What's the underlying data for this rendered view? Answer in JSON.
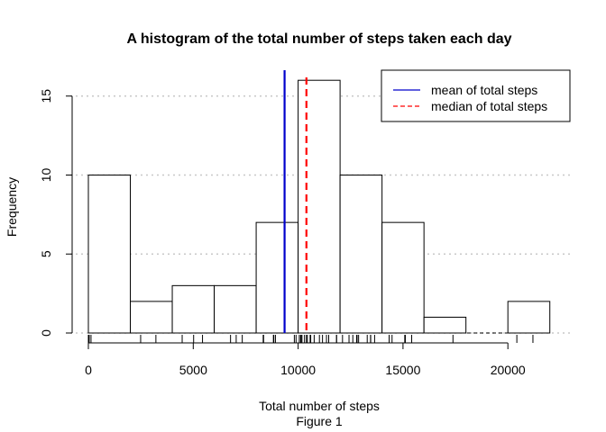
{
  "chart_data": {
    "type": "bar",
    "title": "A histogram of the total number of steps taken each day",
    "xlabel": "Total number of steps",
    "ylabel": "Frequency",
    "caption": "Figure 1",
    "xlim": [
      0,
      22000
    ],
    "ylim": [
      0,
      16
    ],
    "x_ticks": [
      0,
      5000,
      10000,
      15000,
      20000
    ],
    "x_tick_labels": [
      "0",
      "5000",
      "10000",
      "15000",
      "20000"
    ],
    "y_ticks": [
      0,
      5,
      10,
      15
    ],
    "y_tick_labels": [
      "0",
      "5",
      "10",
      "15"
    ],
    "grid": "horizontal dotted at y ticks",
    "bins": [
      {
        "from": 0,
        "to": 2000,
        "count": 10
      },
      {
        "from": 2000,
        "to": 4000,
        "count": 2
      },
      {
        "from": 4000,
        "to": 6000,
        "count": 3
      },
      {
        "from": 6000,
        "to": 8000,
        "count": 3
      },
      {
        "from": 8000,
        "to": 10000,
        "count": 7
      },
      {
        "from": 10000,
        "to": 12000,
        "count": 16
      },
      {
        "from": 12000,
        "to": 14000,
        "count": 10
      },
      {
        "from": 14000,
        "to": 16000,
        "count": 7
      },
      {
        "from": 16000,
        "to": 18000,
        "count": 1
      },
      {
        "from": 18000,
        "to": 20000,
        "count": 0
      },
      {
        "from": 20000,
        "to": 22000,
        "count": 2
      }
    ],
    "mean": 9354,
    "median": 10395,
    "rug": [
      0,
      41,
      126,
      2492,
      3219,
      4472,
      5018,
      5441,
      6778,
      7047,
      7336,
      8334,
      8355,
      8821,
      8841,
      8918,
      9819,
      9900,
      10056,
      10119,
      10139,
      10183,
      10304,
      10395,
      10439,
      10571,
      10600,
      10765,
      11015,
      11162,
      11352,
      11458,
      11829,
      11834,
      12116,
      12426,
      12608,
      12787,
      12811,
      12883,
      13294,
      13452,
      13460,
      13646,
      14339,
      14478,
      15084,
      15098,
      15110,
      15414,
      17382,
      20427,
      21194
    ],
    "legend": {
      "position": "top-right",
      "entries": [
        {
          "label": "mean of total steps",
          "color": "#0000cc",
          "style": "solid"
        },
        {
          "label": "median of total steps",
          "color": "#ff0000",
          "style": "dashed"
        }
      ]
    }
  }
}
